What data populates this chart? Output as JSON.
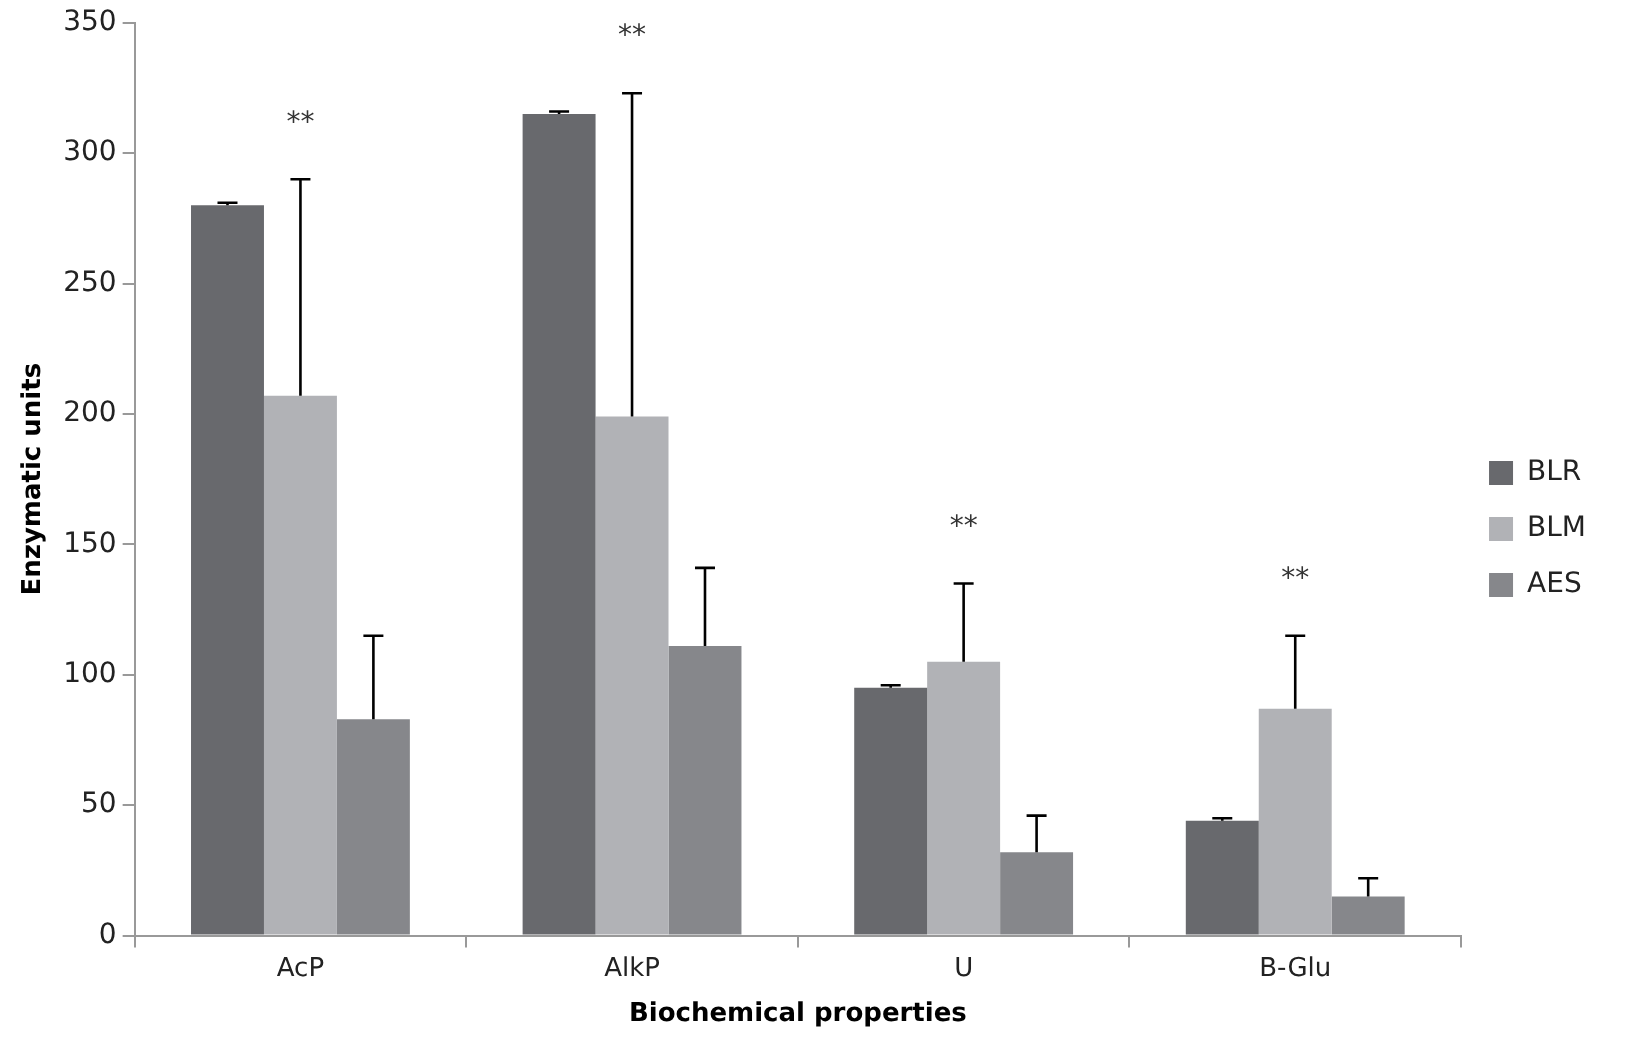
{
  "chart_data": {
    "type": "bar",
    "xlabel": "Biochemical properties",
    "ylabel": "Enzymatic units",
    "categories": [
      "AcP",
      "AlkP",
      "U",
      "B-Glu"
    ],
    "series": [
      {
        "name": "BLR",
        "color": "#68696d",
        "values": [
          280,
          315,
          95,
          44
        ],
        "errors": [
          [
            280,
            281
          ],
          [
            315,
            316
          ],
          [
            95,
            96
          ],
          [
            44,
            45
          ]
        ]
      },
      {
        "name": "BLM",
        "color": "#b1b2b6",
        "values": [
          207,
          199,
          105,
          87
        ],
        "errors": [
          [
            207,
            290
          ],
          [
            199,
            323
          ],
          [
            105,
            135
          ],
          [
            87,
            115
          ]
        ]
      },
      {
        "name": "AES",
        "color": "#86878b",
        "values": [
          83,
          111,
          32,
          15
        ],
        "errors": [
          [
            83,
            115
          ],
          [
            111,
            141
          ],
          [
            32,
            46
          ],
          [
            15,
            22
          ]
        ]
      }
    ],
    "ylim": [
      0,
      350
    ],
    "yticks": [
      0,
      50,
      100,
      150,
      200,
      250,
      300,
      350
    ],
    "annotations": [
      "**",
      "**",
      "**",
      "**"
    ],
    "grid": false,
    "legend": "right"
  }
}
